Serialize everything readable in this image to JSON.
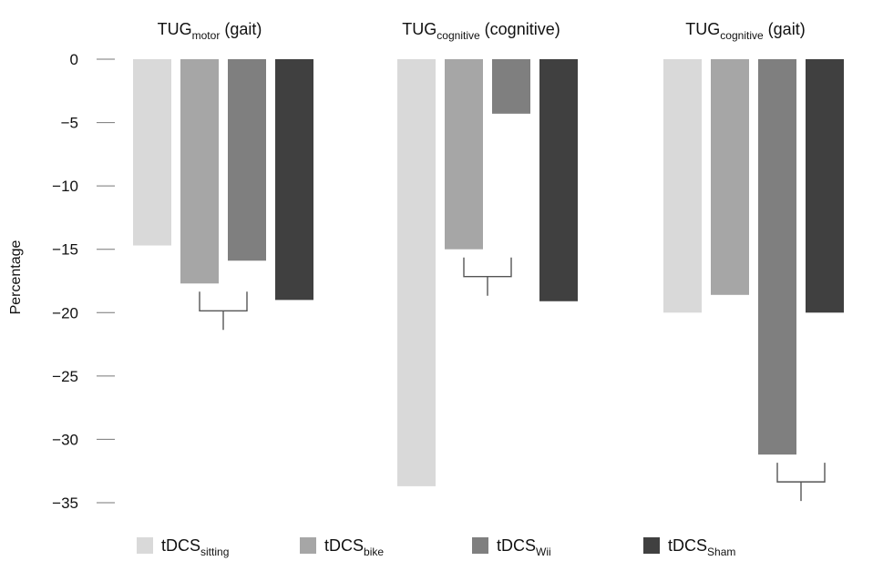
{
  "chart_data": {
    "type": "bar",
    "groups": [
      {
        "main": "TUG",
        "sub": "motor",
        "suffix": " (gait)"
      },
      {
        "main": "TUG",
        "sub": "cognitive",
        "suffix": " (cognitive)"
      },
      {
        "main": "TUG",
        "sub": "cognitive",
        "suffix": " (gait)"
      }
    ],
    "series": [
      {
        "name_main": "tDCS",
        "name_sub": "sitting",
        "color": "#d9d9d9",
        "values": [
          -14.7,
          -33.7,
          -20.0
        ]
      },
      {
        "name_main": "tDCS",
        "name_sub": "bike",
        "color": "#a6a6a6",
        "values": [
          -17.7,
          -15.0,
          -18.6
        ]
      },
      {
        "name_main": "tDCS",
        "name_sub": "Wii",
        "color": "#7f7f7f",
        "values": [
          -15.9,
          -4.3,
          -31.2
        ]
      },
      {
        "name_main": "tDCS",
        "name_sub": "Sham",
        "color": "#404040",
        "values": [
          -19.0,
          -19.1,
          -20.0
        ]
      }
    ],
    "significance_brackets": [
      {
        "group": 0,
        "from_series": 1,
        "to_series": 2
      },
      {
        "group": 1,
        "from_series": 1,
        "to_series": 2
      },
      {
        "group": 2,
        "from_series": 2,
        "to_series": 3
      }
    ],
    "ylabel": "Percentage",
    "ylim": [
      -35,
      0
    ],
    "yticks": [
      0,
      -5,
      -10,
      -15,
      -20,
      -25,
      -30,
      -35
    ],
    "ytick_labels": [
      "0",
      "−5",
      "−10",
      "−15",
      "−20",
      "−25",
      "−30",
      "−35"
    ],
    "grid": false,
    "legend_position": "bottom"
  }
}
